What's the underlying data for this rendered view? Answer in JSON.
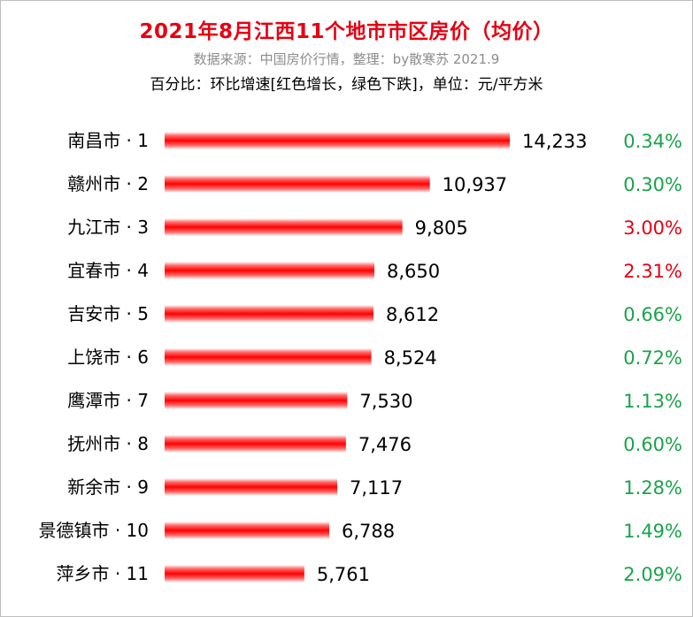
{
  "header": {
    "title": "2021年8月江西11个地市市区房价（均价）",
    "source": "数据来源：中国房价行情，整理：by散寒苏 2021.9",
    "note": "百分比：环比增速[红色增长，绿色下跌]，单位：元/平方米"
  },
  "colors": {
    "bar": "#ff0000",
    "increase": "#e60012",
    "decrease": "#1aa34a"
  },
  "chart_data": {
    "type": "bar",
    "orientation": "horizontal",
    "title": "2021年8月江西11个地市市区房价（均价）",
    "categories": [
      "南昌市 · 1",
      "赣州市 · 2",
      "九江市 · 3",
      "宜春市 · 4",
      "吉安市 · 5",
      "上饶市 · 6",
      "鹰潭市 · 7",
      "抚州市 · 8",
      "新余市 · 9",
      "景德镇市 · 10",
      "萍乡市 · 11"
    ],
    "values": [
      14233,
      10937,
      9805,
      8650,
      8612,
      8524,
      7530,
      7476,
      7117,
      6788,
      5761
    ],
    "value_labels": [
      "14,233",
      "10,937",
      "9,805",
      "8,650",
      "8,612",
      "8,524",
      "7,530",
      "7,476",
      "7,117",
      "6,788",
      "5,761"
    ],
    "changes": [
      "0.34%",
      "0.30%",
      "3.00%",
      "2.31%",
      "0.66%",
      "0.72%",
      "1.13%",
      "0.60%",
      "1.28%",
      "1.49%",
      "2.09%"
    ],
    "change_direction": [
      "down",
      "down",
      "up",
      "up",
      "down",
      "down",
      "down",
      "down",
      "down",
      "down",
      "down"
    ],
    "xlim": [
      0,
      14233
    ],
    "grid": false,
    "legend": "none"
  }
}
